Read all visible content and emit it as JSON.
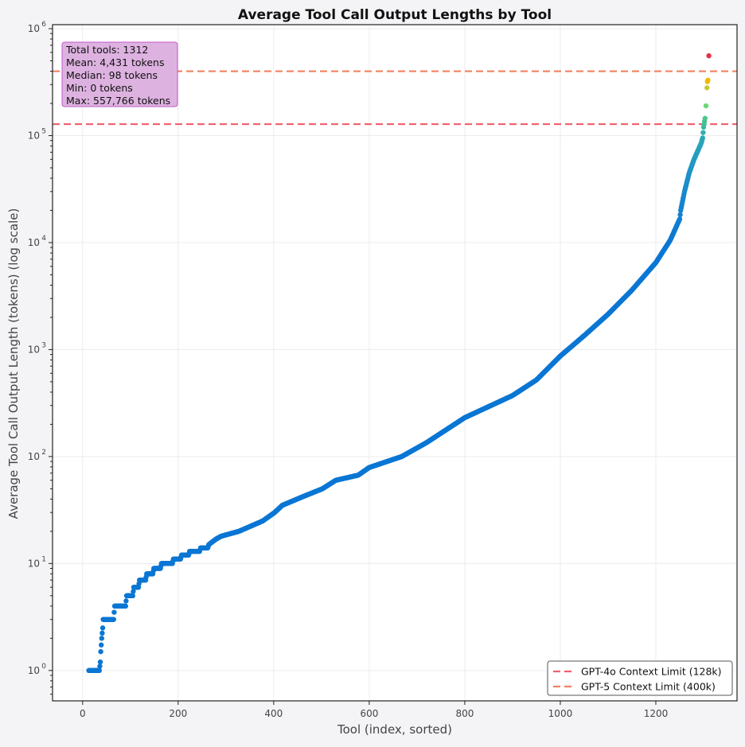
{
  "chart_data": {
    "type": "scatter",
    "title": "Average Tool Call Output Lengths by Tool",
    "xlabel": "Tool (index, sorted)",
    "ylabel": "Average Tool Call Output Length (tokens) (log scale)",
    "xlim": [
      -63,
      1370
    ],
    "ylim": [
      0.52,
      1090000
    ],
    "yscale": "log",
    "grid": true,
    "x_ticks": [
      0,
      200,
      400,
      600,
      800,
      1000,
      1200
    ],
    "y_ticks": [
      1,
      10,
      100,
      1000,
      10000,
      100000,
      1000000
    ],
    "y_tick_labels": [
      {
        "base": "10",
        "exp": "0"
      },
      {
        "base": "10",
        "exp": "1"
      },
      {
        "base": "10",
        "exp": "2"
      },
      {
        "base": "10",
        "exp": "3"
      },
      {
        "base": "10",
        "exp": "4"
      },
      {
        "base": "10",
        "exp": "5"
      },
      {
        "base": "10",
        "exp": "6"
      }
    ],
    "n_points": 1312,
    "zero_value_points": 13,
    "curve_samples": [
      [
        13,
        1
      ],
      [
        35,
        1
      ],
      [
        37,
        1.2
      ],
      [
        38,
        1.5
      ],
      [
        40,
        2
      ],
      [
        42,
        2.5
      ],
      [
        43,
        3
      ],
      [
        65,
        3
      ],
      [
        66,
        3.5
      ],
      [
        67,
        4
      ],
      [
        90,
        4
      ],
      [
        92,
        5
      ],
      [
        105,
        5
      ],
      [
        107,
        6
      ],
      [
        117,
        6
      ],
      [
        119,
        7
      ],
      [
        132,
        7
      ],
      [
        134,
        8
      ],
      [
        147,
        8
      ],
      [
        149,
        9
      ],
      [
        163,
        9
      ],
      [
        165,
        10
      ],
      [
        188,
        10
      ],
      [
        190,
        11
      ],
      [
        205,
        11
      ],
      [
        207,
        12
      ],
      [
        222,
        12
      ],
      [
        224,
        13
      ],
      [
        245,
        13
      ],
      [
        247,
        14
      ],
      [
        262,
        14
      ],
      [
        264,
        15
      ],
      [
        272,
        16
      ],
      [
        280,
        17
      ],
      [
        290,
        18
      ],
      [
        327,
        20
      ],
      [
        377,
        25
      ],
      [
        402,
        30
      ],
      [
        418,
        35
      ],
      [
        460,
        42
      ],
      [
        502,
        50
      ],
      [
        530,
        60
      ],
      [
        577,
        67
      ],
      [
        600,
        79
      ],
      [
        668,
        100
      ],
      [
        720,
        135
      ],
      [
        800,
        231
      ],
      [
        900,
        372
      ],
      [
        950,
        520
      ],
      [
        1000,
        870
      ],
      [
        1050,
        1350
      ],
      [
        1100,
        2140
      ],
      [
        1150,
        3600
      ],
      [
        1200,
        6500
      ],
      [
        1230,
        10500
      ],
      [
        1250,
        16600
      ],
      [
        1252,
        20000
      ],
      [
        1260,
        30000
      ],
      [
        1270,
        45000
      ],
      [
        1280,
        60000
      ],
      [
        1295,
        85000
      ],
      [
        1298,
        95000
      ],
      [
        1300,
        120000
      ],
      [
        1303,
        145000
      ],
      [
        1305,
        190000
      ],
      [
        1307,
        280000
      ],
      [
        1308,
        320000
      ],
      [
        1309,
        330000
      ],
      [
        1311,
        557766
      ]
    ],
    "color_stops": [
      [
        10000,
        "#0a76d4"
      ],
      [
        40000,
        "#1d8ecb"
      ],
      [
        100000,
        "#2aa9b6"
      ],
      [
        140000,
        "#48c48e"
      ],
      [
        190000,
        "#6cd676"
      ],
      [
        280000,
        "#c6c838"
      ],
      [
        330000,
        "#f5b700"
      ],
      [
        557766,
        "#e8304a"
      ]
    ],
    "hlines": [
      {
        "name": "GPT-4o Context Limit (128k)",
        "y": 128000,
        "color": "#f0606e"
      },
      {
        "name": "GPT-5 Context Limit (400k)",
        "y": 400000,
        "color": "#f08062"
      }
    ],
    "legend_placement": "bottom-right",
    "stats_box": {
      "lines": [
        "Total tools: 1312",
        "Mean: 4,431 tokens",
        "Median: 98 tokens",
        "Min: 0 tokens",
        "Max: 557,766 tokens"
      ],
      "fill": "#ddb2e0",
      "border": "#c459cc",
      "placement": "top-left"
    }
  }
}
